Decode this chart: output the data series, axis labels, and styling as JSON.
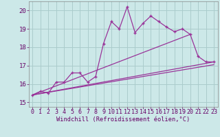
{
  "xlabel": "Windchill (Refroidissement éolien,°C)",
  "bg_color": "#cce8e8",
  "line_color": "#993399",
  "grid_color": "#aacccc",
  "x_ticks": [
    0,
    1,
    2,
    3,
    4,
    5,
    6,
    7,
    8,
    9,
    10,
    11,
    12,
    13,
    14,
    15,
    16,
    17,
    18,
    19,
    20,
    21,
    22,
    23
  ],
  "y_ticks": [
    15,
    16,
    17,
    18,
    19,
    20
  ],
  "xlim": [
    -0.5,
    23.5
  ],
  "ylim": [
    14.75,
    20.5
  ],
  "main_line_x": [
    0,
    1,
    2,
    3,
    4,
    5,
    6,
    7,
    8,
    9,
    10,
    11,
    12,
    13,
    14,
    15,
    16,
    17,
    18,
    19,
    20,
    21,
    22,
    23
  ],
  "main_line_y": [
    15.4,
    15.6,
    15.5,
    16.1,
    16.1,
    16.6,
    16.6,
    16.1,
    16.4,
    18.2,
    19.4,
    19.0,
    20.2,
    18.8,
    19.3,
    19.7,
    19.4,
    19.1,
    18.85,
    19.0,
    18.7,
    17.5,
    17.2,
    17.2
  ],
  "line1_x": [
    0,
    23
  ],
  "line1_y": [
    15.4,
    17.2
  ],
  "line2_x": [
    0,
    20
  ],
  "line2_y": [
    15.4,
    18.7
  ],
  "line3_x": [
    0,
    23
  ],
  "line3_y": [
    15.4,
    17.05
  ],
  "tick_fontsize": 6.0,
  "xlabel_fontsize": 6.2
}
